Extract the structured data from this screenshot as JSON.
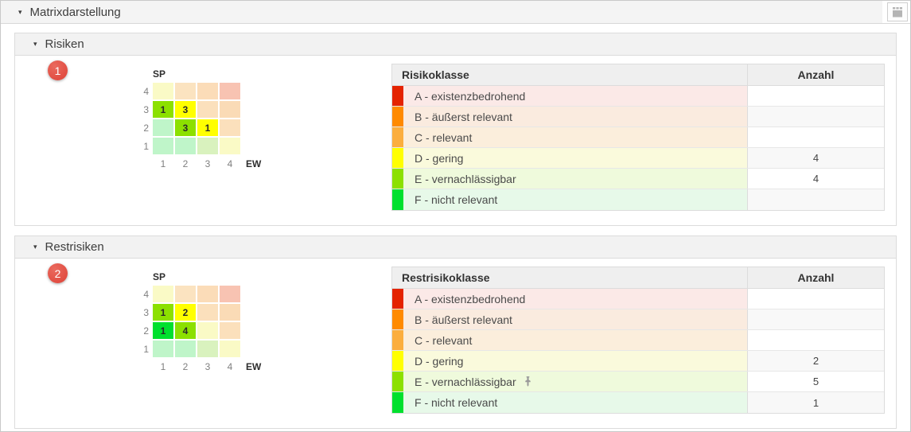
{
  "header": {
    "title": "Matrixdarstellung"
  },
  "icons": {
    "caret": "▾",
    "calendar": "calendar-icon",
    "pin": "pushpin-icon"
  },
  "colors": {
    "badge_red": "#de4237",
    "swatch_a": "#e42300",
    "swatch_b": "#ff8a00",
    "swatch_c": "#fbae3e",
    "swatch_d": "#ffff00",
    "swatch_e": "#8ce000",
    "swatch_f": "#00e02e"
  },
  "sections": [
    {
      "label": "Risiken",
      "badge": "1",
      "matrix": {
        "y_axis_label": "SP",
        "x_axis_label": "EW",
        "row_labels": [
          "4",
          "3",
          "2",
          "1"
        ],
        "col_labels": [
          "1",
          "2",
          "3",
          "4"
        ],
        "cells": [
          [
            {
              "bg": "#fafac6",
              "value": ""
            },
            {
              "bg": "#fbe3c0",
              "value": ""
            },
            {
              "bg": "#fbdcb8",
              "value": ""
            },
            {
              "bg": "#f8c3b2",
              "value": ""
            }
          ],
          [
            {
              "bg": "#8ce000",
              "value": "1"
            },
            {
              "bg": "#ffff00",
              "value": "3"
            },
            {
              "bg": "#fbe0bc",
              "value": ""
            },
            {
              "bg": "#fadbb6",
              "value": ""
            }
          ],
          [
            {
              "bg": "#bff5c9",
              "value": ""
            },
            {
              "bg": "#8ce000",
              "value": "3"
            },
            {
              "bg": "#ffff00",
              "value": "1"
            },
            {
              "bg": "#fbe0bc",
              "value": ""
            }
          ],
          [
            {
              "bg": "#bff5c9",
              "value": ""
            },
            {
              "bg": "#bff5c9",
              "value": ""
            },
            {
              "bg": "#d9f2be",
              "value": ""
            },
            {
              "bg": "#fafac6",
              "value": ""
            }
          ]
        ]
      },
      "table": {
        "class_header": "Risikoklasse",
        "count_header": "Anzahl",
        "rows": [
          {
            "swatch": "#e42300",
            "bg": "#fbe9e7",
            "label": "A - existenzbedrohend",
            "count": "",
            "pinned": false
          },
          {
            "swatch": "#ff8a00",
            "bg": "#faebdf",
            "label": "B - äußerst relevant",
            "count": "",
            "pinned": false
          },
          {
            "swatch": "#fbae3e",
            "bg": "#fbeedc",
            "label": "C - relevant",
            "count": "",
            "pinned": false
          },
          {
            "swatch": "#ffff00",
            "bg": "#fafadc",
            "label": "D - gering",
            "count": "4",
            "pinned": false
          },
          {
            "swatch": "#8ce000",
            "bg": "#effadc",
            "label": "E - vernachlässigbar",
            "count": "4",
            "pinned": false
          },
          {
            "swatch": "#00e02e",
            "bg": "#e7f9e9",
            "label": "F - nicht relevant",
            "count": "",
            "pinned": false
          }
        ]
      }
    },
    {
      "label": "Restrisiken",
      "badge": "2",
      "matrix": {
        "y_axis_label": "SP",
        "x_axis_label": "EW",
        "row_labels": [
          "4",
          "3",
          "2",
          "1"
        ],
        "col_labels": [
          "1",
          "2",
          "3",
          "4"
        ],
        "cells": [
          [
            {
              "bg": "#fafac6",
              "value": ""
            },
            {
              "bg": "#fbe3c0",
              "value": ""
            },
            {
              "bg": "#fbdcb8",
              "value": ""
            },
            {
              "bg": "#f8c3b2",
              "value": ""
            }
          ],
          [
            {
              "bg": "#8ce000",
              "value": "1"
            },
            {
              "bg": "#ffff00",
              "value": "2"
            },
            {
              "bg": "#fbe0bc",
              "value": ""
            },
            {
              "bg": "#fadbb6",
              "value": ""
            }
          ],
          [
            {
              "bg": "#00e02e",
              "value": "1"
            },
            {
              "bg": "#8ce000",
              "value": "4"
            },
            {
              "bg": "#fafac6",
              "value": ""
            },
            {
              "bg": "#fbe0bc",
              "value": ""
            }
          ],
          [
            {
              "bg": "#bff5c9",
              "value": ""
            },
            {
              "bg": "#bff5c9",
              "value": ""
            },
            {
              "bg": "#d9f2be",
              "value": ""
            },
            {
              "bg": "#fafac6",
              "value": ""
            }
          ]
        ]
      },
      "table": {
        "class_header": "Restrisikoklasse",
        "count_header": "Anzahl",
        "rows": [
          {
            "swatch": "#e42300",
            "bg": "#fbe9e7",
            "label": "A - existenzbedrohend",
            "count": "",
            "pinned": false
          },
          {
            "swatch": "#ff8a00",
            "bg": "#faebdf",
            "label": "B - äußerst relevant",
            "count": "",
            "pinned": false
          },
          {
            "swatch": "#fbae3e",
            "bg": "#fbeedc",
            "label": "C - relevant",
            "count": "",
            "pinned": false
          },
          {
            "swatch": "#ffff00",
            "bg": "#fafadc",
            "label": "D - gering",
            "count": "2",
            "pinned": false
          },
          {
            "swatch": "#8ce000",
            "bg": "#effadc",
            "label": "E - vernachlässigbar",
            "count": "5",
            "pinned": true
          },
          {
            "swatch": "#00e02e",
            "bg": "#e7f9e9",
            "label": "F - nicht relevant",
            "count": "1",
            "pinned": false
          }
        ]
      }
    }
  ]
}
